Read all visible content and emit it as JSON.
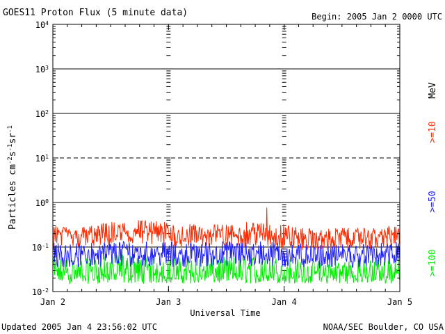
{
  "chart_data": {
    "type": "line",
    "title": "GOES11 Proton Flux (5 minute data)",
    "begin": "Begin: 2005 Jan 2 0000 UTC",
    "xlabel": "Universal Time",
    "ylabel_main": "Particles cm",
    "ylabel_sup1": "-2",
    "ylabel_mid1": "s",
    "ylabel_sup2": "-1",
    "ylabel_mid2": "sr",
    "ylabel_sup3": "-1",
    "y_scale": "log",
    "ylim": [
      0.01,
      10000
    ],
    "xlim": [
      0,
      3
    ],
    "x_ticks": [
      {
        "v": 0,
        "label": "Jan 2"
      },
      {
        "v": 1,
        "label": "Jan 3"
      },
      {
        "v": 2,
        "label": "Jan 4"
      },
      {
        "v": 3,
        "label": "Jan 5"
      }
    ],
    "y_ticks": [
      {
        "v": 10000,
        "base": "10",
        "exp": "4"
      },
      {
        "v": 1000,
        "base": "10",
        "exp": "3"
      },
      {
        "v": 100,
        "base": "10",
        "exp": "2"
      },
      {
        "v": 10,
        "base": "10",
        "exp": "1"
      },
      {
        "v": 1,
        "base": "10",
        "exp": "0"
      },
      {
        "v": 0.1,
        "base": "10",
        "exp": "-1"
      },
      {
        "v": 0.01,
        "base": "10",
        "exp": "-2"
      }
    ],
    "solid_gridlines": [
      1000,
      100,
      1,
      0.1
    ],
    "dashed_gridlines": [
      10
    ],
    "unit_label": "MeV",
    "colors": {
      ">=10": "#ff2a00",
      ">=50": "#2020ff",
      ">=100": "#00ee00"
    },
    "series": [
      {
        "name": ">=10",
        "color": "#ff2a00",
        "x": [
          0,
          0.25,
          0.5,
          0.75,
          1,
          1.25,
          1.5,
          1.75,
          2,
          2.25,
          2.5,
          2.75,
          3
        ],
        "values": [
          0.2,
          0.17,
          0.2,
          0.21,
          0.19,
          0.18,
          0.2,
          0.2,
          0.18,
          0.15,
          0.17,
          0.17,
          0.2
        ],
        "band_low": [
          0.09,
          0.1,
          0.1,
          0.1,
          0.1,
          0.1,
          0.1,
          0.1,
          0.09,
          0.08,
          0.09,
          0.09,
          0.1
        ],
        "band_high": [
          0.3,
          0.29,
          0.37,
          0.43,
          0.36,
          0.32,
          0.33,
          0.38,
          0.33,
          0.25,
          0.27,
          0.26,
          0.32
        ],
        "spike": {
          "x": 1.85,
          "value": 0.77
        }
      },
      {
        "name": ">=50",
        "color": "#2020ff",
        "x": [
          0,
          0.25,
          0.5,
          0.75,
          1,
          1.25,
          1.5,
          1.75,
          2,
          2.25,
          2.5,
          2.75,
          3
        ],
        "values": [
          0.07,
          0.065,
          0.07,
          0.075,
          0.07,
          0.068,
          0.07,
          0.07,
          0.068,
          0.06,
          0.065,
          0.065,
          0.068
        ],
        "band_low": [
          0.035,
          0.035,
          0.036,
          0.036,
          0.035,
          0.035,
          0.036,
          0.035,
          0.034,
          0.033,
          0.034,
          0.035,
          0.036
        ],
        "band_high": [
          0.13,
          0.12,
          0.14,
          0.15,
          0.13,
          0.13,
          0.14,
          0.14,
          0.13,
          0.11,
          0.12,
          0.12,
          0.13
        ]
      },
      {
        "name": ">=100",
        "color": "#00ee00",
        "x": [
          0,
          0.25,
          0.5,
          0.75,
          1,
          1.25,
          1.5,
          1.75,
          2,
          2.25,
          2.5,
          2.75,
          3
        ],
        "values": [
          0.025,
          0.024,
          0.025,
          0.026,
          0.025,
          0.024,
          0.025,
          0.025,
          0.024,
          0.023,
          0.024,
          0.024,
          0.025
        ],
        "band_low": [
          0.015,
          0.015,
          0.015,
          0.015,
          0.015,
          0.015,
          0.015,
          0.015,
          0.015,
          0.015,
          0.015,
          0.015,
          0.015
        ],
        "band_high": [
          0.06,
          0.055,
          0.065,
          0.07,
          0.06,
          0.058,
          0.062,
          0.065,
          0.06,
          0.05,
          0.055,
          0.055,
          0.06
        ]
      }
    ],
    "grid": true,
    "legend": "right side, rotated"
  },
  "footer": {
    "updated": "Updated 2005 Jan  4 23:56:02 UTC",
    "credit": "NOAA/SEC Boulder, CO USA"
  }
}
